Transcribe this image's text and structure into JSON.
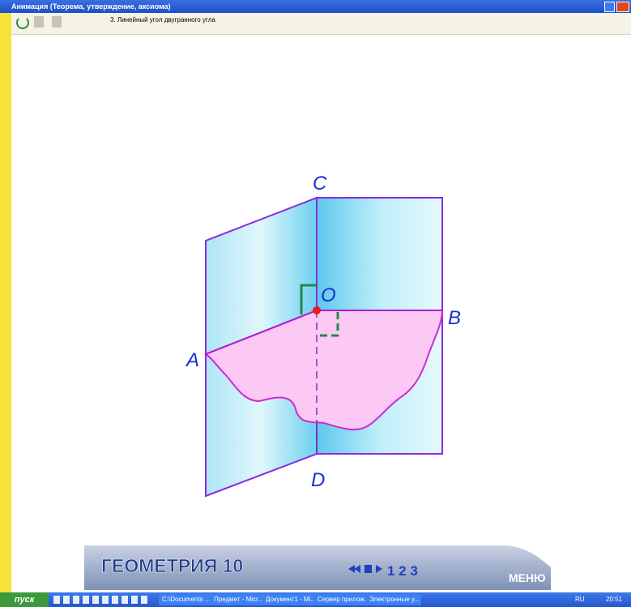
{
  "window": {
    "title": "Анимация (Теорема, утверждение, аксиома)",
    "subtitle": "3. Линейный угол двугранного угла"
  },
  "diagram": {
    "labels": {
      "c": "C",
      "o": "O",
      "b": "B",
      "a": "A",
      "d": "D"
    }
  },
  "banner": {
    "title": "ГЕОМЕТРИЯ 10",
    "pages": "1 2 3",
    "menu": "МЕНЮ"
  },
  "taskbar": {
    "start": "пуск",
    "items": [
      "C:\\Documents ...",
      "Предмет - Micr...",
      "Документ1 - Mi...",
      "Сервер прилож...",
      "Электронные у..."
    ],
    "lang": "RU",
    "clock": "20:51"
  }
}
